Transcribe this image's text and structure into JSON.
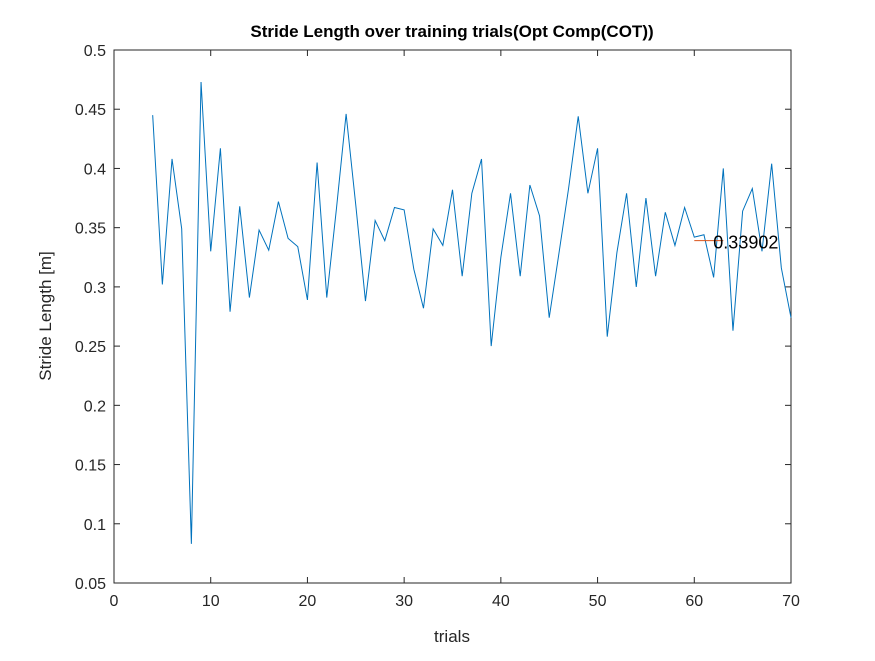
{
  "chart_data": {
    "type": "line",
    "title": "Stride Length over training trials(Opt Comp(COT))",
    "xlabel": "trials",
    "ylabel": "Stride Length [m]",
    "xlim": [
      0,
      70
    ],
    "ylim": [
      0.05,
      0.5
    ],
    "xticks": [
      0,
      10,
      20,
      30,
      40,
      50,
      60,
      70
    ],
    "yticks": [
      0.05,
      0.1,
      0.15,
      0.2,
      0.25,
      0.3,
      0.35,
      0.4,
      0.45,
      0.5
    ],
    "xtick_labels": [
      "0",
      "10",
      "20",
      "30",
      "40",
      "50",
      "60",
      "70"
    ],
    "ytick_labels": [
      "0.05",
      "0.1",
      "0.15",
      "0.2",
      "0.25",
      "0.3",
      "0.35",
      "0.4",
      "0.45",
      "0.5"
    ],
    "grid": false,
    "series": [
      {
        "color": "#0072bd",
        "x": [
          4,
          5,
          6,
          7,
          8,
          9,
          10,
          11,
          12,
          13,
          14,
          15,
          16,
          17,
          18,
          19,
          20,
          21,
          22,
          23,
          24,
          25,
          26,
          27,
          28,
          29,
          30,
          31,
          32,
          33,
          34,
          35,
          36,
          37,
          38,
          39,
          40,
          41,
          42,
          43,
          44,
          45,
          46,
          47,
          48,
          49,
          50,
          51,
          52,
          53,
          54,
          55,
          56,
          57,
          58,
          59,
          60,
          61,
          62,
          63,
          64,
          65,
          66,
          67,
          68,
          69,
          70
        ],
        "y": [
          0.445,
          0.302,
          0.408,
          0.349,
          0.083,
          0.473,
          0.33,
          0.417,
          0.279,
          0.368,
          0.291,
          0.348,
          0.331,
          0.372,
          0.341,
          0.334,
          0.289,
          0.405,
          0.291,
          0.366,
          0.446,
          0.369,
          0.288,
          0.356,
          0.339,
          0.367,
          0.365,
          0.315,
          0.282,
          0.349,
          0.335,
          0.382,
          0.309,
          0.379,
          0.408,
          0.25,
          0.325,
          0.379,
          0.309,
          0.386,
          0.36,
          0.274,
          0.328,
          0.383,
          0.444,
          0.379,
          0.417,
          0.258,
          0.329,
          0.379,
          0.3,
          0.375,
          0.309,
          0.363,
          0.335,
          0.367,
          0.342,
          0.344,
          0.308,
          0.4,
          0.263,
          0.364,
          0.383,
          0.33,
          0.404,
          0.316,
          0.274
        ]
      }
    ],
    "annotation": {
      "label": "0.33902",
      "value": 0.33902,
      "x_start": 60,
      "x_end": 63,
      "color": "#d95319"
    }
  }
}
